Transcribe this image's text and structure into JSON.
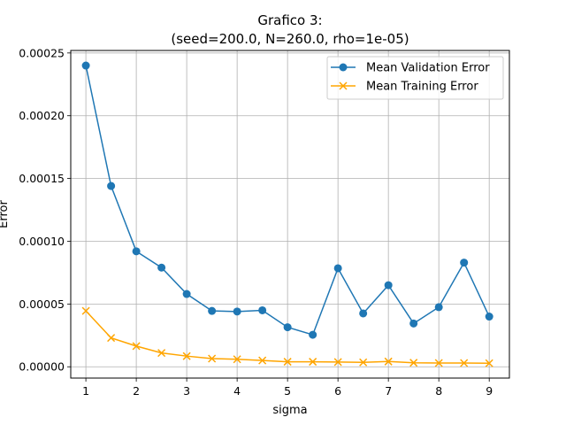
{
  "chart_data": {
    "type": "line",
    "title": "Grafico 3:",
    "subtitle": "(seed=200.0, N=260.0, rho=1e-05)",
    "xlabel": "sigma",
    "ylabel": "Error",
    "xlim": [
      0.7,
      9.4
    ],
    "ylim": [
      -9e-06,
      0.000252
    ],
    "x_ticks": [
      1,
      2,
      3,
      4,
      5,
      6,
      7,
      8,
      9
    ],
    "x_tick_labels": [
      "1",
      "2",
      "3",
      "4",
      "5",
      "6",
      "7",
      "8",
      "9"
    ],
    "y_ticks": [
      0,
      5e-05,
      0.0001,
      0.00015,
      0.0002,
      0.00025
    ],
    "y_tick_labels": [
      "0.00000",
      "0.00005",
      "0.00010",
      "0.00015",
      "0.00020",
      "0.00025"
    ],
    "grid": true,
    "legend_position": "top-right",
    "x": [
      1,
      1.5,
      2,
      2.5,
      3,
      3.5,
      4,
      4.5,
      5,
      5.5,
      6,
      6.5,
      7,
      7.5,
      8,
      8.5,
      9
    ],
    "series": [
      {
        "name": "Mean Validation Error",
        "color": "#1f77b4",
        "marker": "circle",
        "values": [
          0.00024,
          0.000144,
          9.2e-05,
          7.9e-05,
          5.8e-05,
          4.45e-05,
          4.4e-05,
          4.5e-05,
          3.15e-05,
          2.55e-05,
          7.85e-05,
          4.25e-05,
          6.5e-05,
          3.45e-05,
          4.75e-05,
          8.3e-05,
          4e-05
        ]
      },
      {
        "name": "Mean Training Error",
        "color": "#ffa500",
        "marker": "x",
        "values": [
          4.45e-05,
          2.3e-05,
          1.65e-05,
          1.1e-05,
          8.5e-06,
          6.5e-06,
          6e-06,
          5e-06,
          4e-06,
          4e-06,
          3.8e-06,
          3.5e-06,
          4.2e-06,
          3.2e-06,
          3e-06,
          3e-06,
          2.8e-06
        ]
      }
    ]
  }
}
